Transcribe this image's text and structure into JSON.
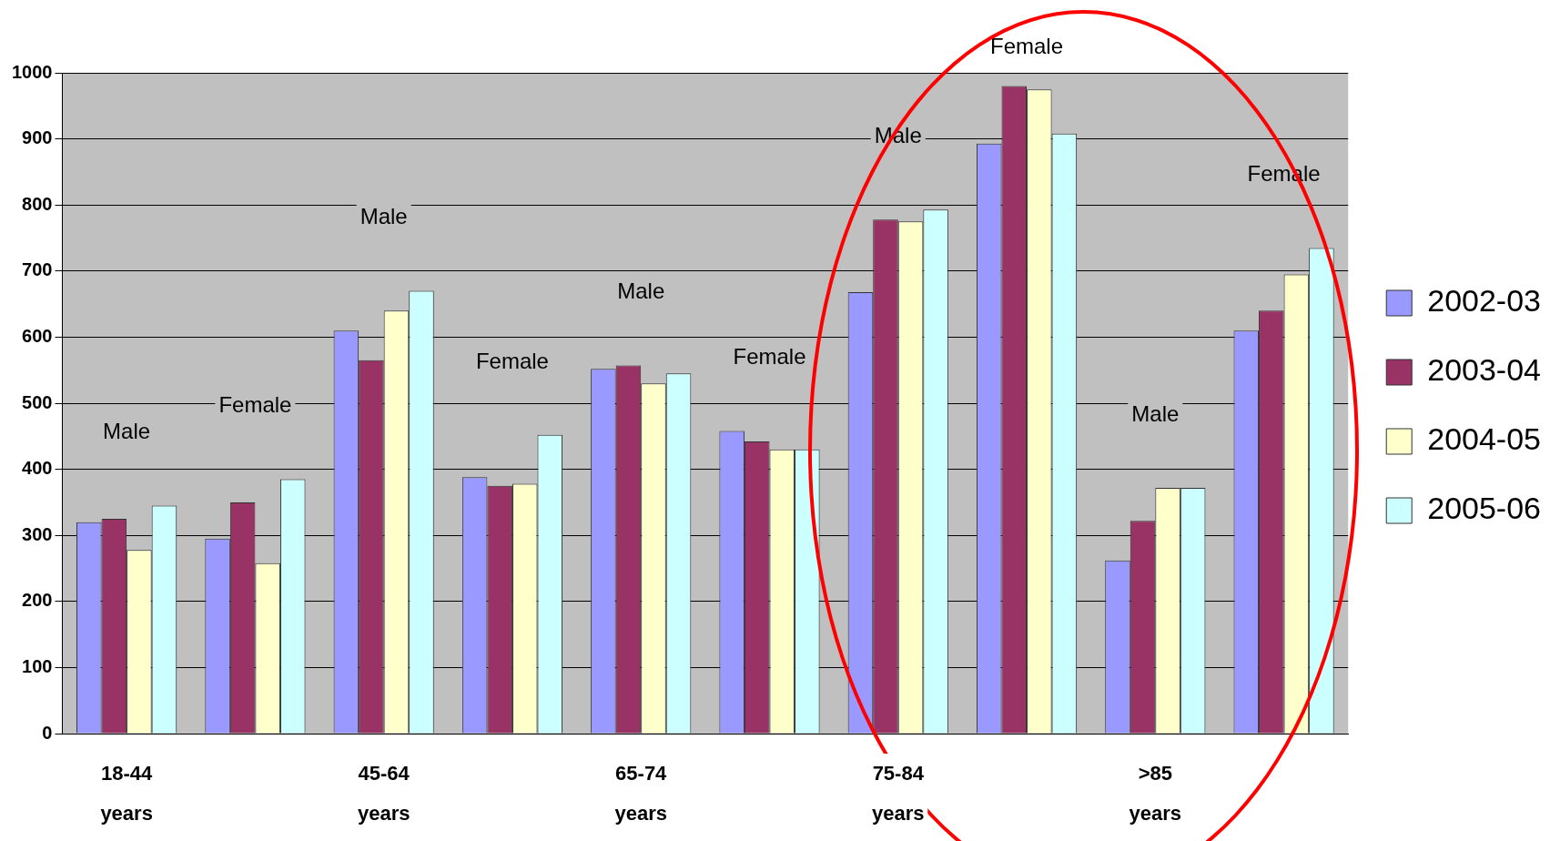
{
  "chart_data": {
    "type": "bar",
    "categories": [
      "18-44 years",
      null,
      "45-64 years",
      null,
      "65-74 years",
      null,
      "75-84 years",
      null,
      ">85 years",
      null
    ],
    "series": [
      {
        "name": "2002-03",
        "color": "#9999ff",
        "values": [
          320,
          295,
          610,
          388,
          552,
          458,
          668,
          893,
          262,
          610
        ]
      },
      {
        "name": "2003-04",
        "color": "#993366",
        "values": [
          325,
          350,
          565,
          375,
          557,
          442,
          778,
          980,
          322,
          640
        ]
      },
      {
        "name": "2004-05",
        "color": "#ffffcc",
        "values": [
          278,
          258,
          640,
          378,
          530,
          430,
          775,
          975,
          372,
          695
        ]
      },
      {
        "name": "2005-06",
        "color": "#ccffff",
        "values": [
          345,
          385,
          670,
          452,
          545,
          430,
          793,
          908,
          372,
          735
        ]
      }
    ],
    "annotations": [
      "Male",
      "Female",
      "Male",
      "Female",
      "Male",
      "Female",
      "Male",
      "Female",
      "Male",
      "Female"
    ],
    "ylim": [
      0,
      1000
    ],
    "yticks": [
      0,
      100,
      200,
      300,
      400,
      500,
      600,
      700,
      800,
      900,
      1000
    ],
    "grid": "y",
    "legend": "right"
  }
}
